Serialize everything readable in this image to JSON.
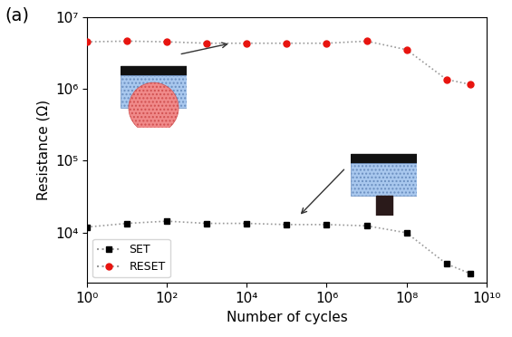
{
  "chart_data": {
    "type": "line",
    "annotations": [
      "(a)"
    ],
    "x_label": "Number of cycles",
    "y_label": "Resistance (Ω)",
    "log": true,
    "x": [
      1,
      10,
      100,
      1000,
      10000,
      100000,
      1000000,
      10000000,
      100000000,
      1000000000,
      4000000000
    ],
    "series": [
      {
        "name": "SET",
        "color": "#000000",
        "marker": "square",
        "line_style": "dotted",
        "values": [
          12000,
          13500,
          14500,
          13500,
          13500,
          13000,
          13000,
          12500,
          10000,
          3700,
          2700
        ]
      },
      {
        "name": "RESET",
        "color": "#e8140f",
        "marker": "circle",
        "line_style": "dotted",
        "values": [
          4500000,
          4600000,
          4500000,
          4300000,
          4300000,
          4300000,
          4300000,
          4600000,
          3500000,
          1350000,
          1150000
        ]
      }
    ],
    "xlim": [
      1,
      10000000000
    ],
    "xticks": [
      {
        "value": 1,
        "label": "10⁰"
      },
      {
        "value": 100,
        "label": "10²"
      },
      {
        "value": 10000,
        "label": "10⁴"
      },
      {
        "value": 1000000,
        "label": "10⁶"
      },
      {
        "value": 100000000,
        "label": "10⁸"
      },
      {
        "value": 10000000000,
        "label": "10¹⁰"
      }
    ],
    "ylim": [
      2000,
      10000000
    ],
    "yticks": [
      {
        "value": 10000,
        "label": "10⁴"
      },
      {
        "value": 100000,
        "label": "10⁵"
      },
      {
        "value": 1000000,
        "label": "10⁶"
      },
      {
        "value": 10000000,
        "label": "10⁷"
      }
    ],
    "legend": "lower left"
  }
}
